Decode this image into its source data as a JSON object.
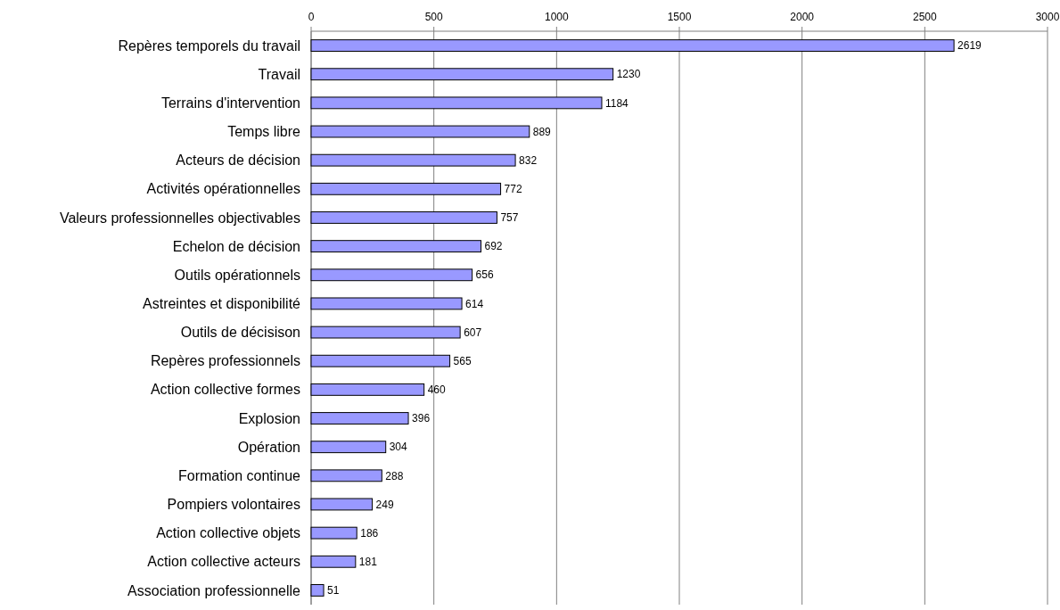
{
  "chart_data": {
    "type": "bar",
    "orientation": "horizontal",
    "categories": [
      "Repères temporels du travail",
      "Travail",
      "Terrains d'intervention",
      "Temps libre",
      "Acteurs de décision",
      "Activités opérationnelles",
      "Valeurs professionnelles objectivables",
      "Echelon de décision",
      "Outils opérationnels",
      "Astreintes et disponibilité",
      "Outils de décisison",
      "Repères professionnels",
      "Action collective formes",
      "Explosion",
      "Opération",
      "Formation continue",
      "Pompiers volontaires",
      "Action collective objets",
      "Action collective acteurs",
      "Association professionnelle"
    ],
    "values": [
      2619,
      1230,
      1184,
      889,
      832,
      772,
      757,
      692,
      656,
      614,
      607,
      565,
      460,
      396,
      304,
      288,
      249,
      186,
      181,
      51
    ],
    "color": "#9999ff",
    "xlim": [
      0,
      3000
    ],
    "xticks": [
      0,
      500,
      1000,
      1500,
      2000,
      2500,
      3000
    ],
    "grid": "x",
    "data_labels": true
  }
}
